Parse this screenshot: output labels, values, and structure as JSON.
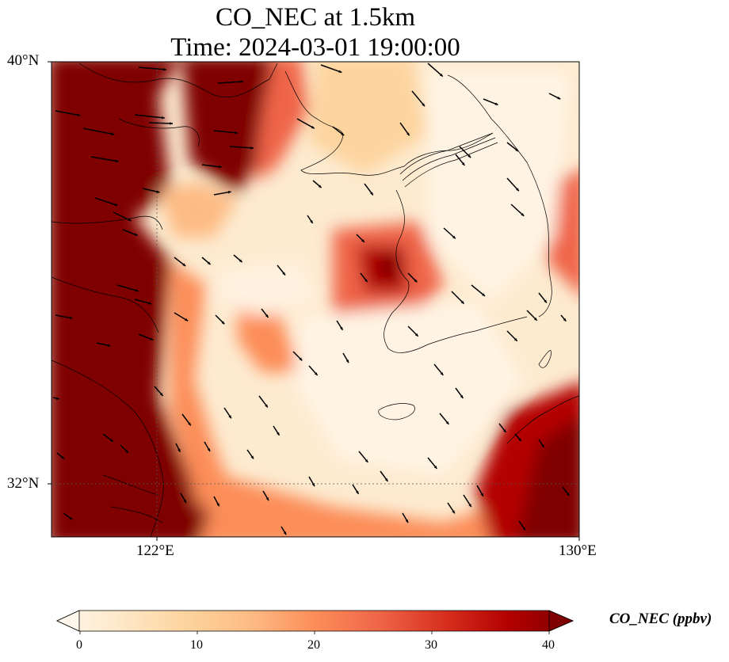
{
  "title": {
    "line1": "CO_NEC at 1.5km",
    "line2": "Time: 2024-03-01 19:00:00"
  },
  "axes": {
    "lat_ticks": [
      "40°N",
      "32°N"
    ],
    "lon_ticks": [
      "122°E",
      "130°E"
    ],
    "lat_range": [
      31,
      40
    ],
    "lon_range": [
      120,
      130
    ]
  },
  "colorbar": {
    "label": "CO_NEC (ppbv)",
    "ticks": [
      "0",
      "10",
      "20",
      "30",
      "40"
    ],
    "range": [
      0,
      40
    ],
    "extend": "both",
    "colormap": "OrRd",
    "colors": [
      "#fff7ec",
      "#fee8c8",
      "#fdd49e",
      "#fdbb84",
      "#fc8d59",
      "#ef6548",
      "#d7301f",
      "#b30000",
      "#7f0000"
    ]
  },
  "map": {
    "gridlines": "dotted",
    "features": [
      "coastline",
      "wind-vectors",
      "concentration-field"
    ]
  }
}
